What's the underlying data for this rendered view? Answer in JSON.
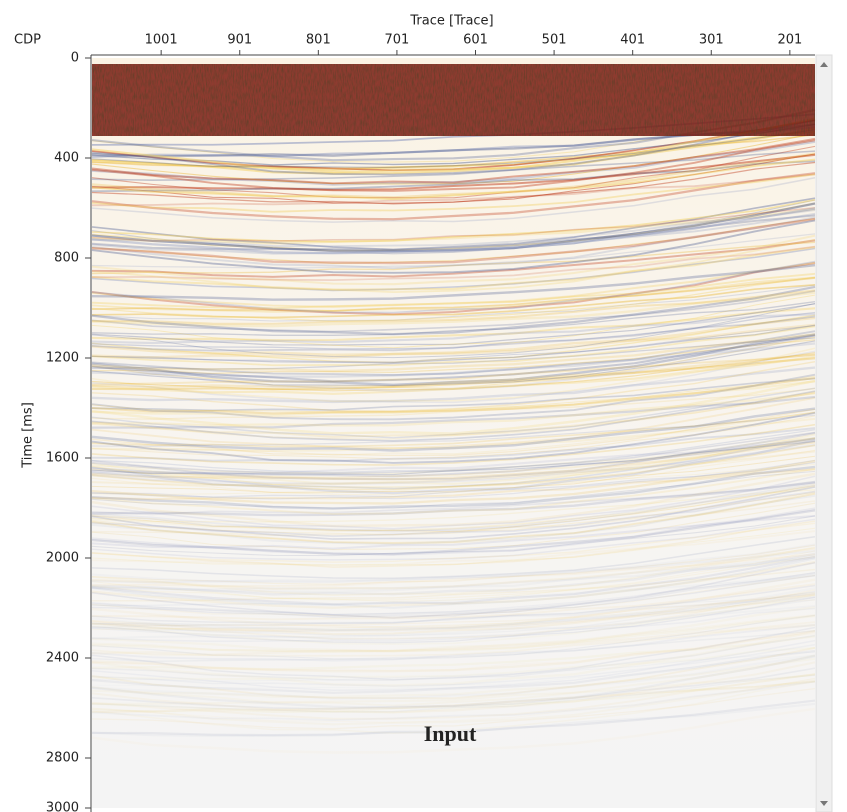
{
  "chart_data": {
    "type": "seismic",
    "title": "Trace [Trace]",
    "x_header": "CDP",
    "ylabel": "Time [ms]",
    "annotation": "Input",
    "xlim": [
      1089,
      169
    ],
    "xticks": [
      1001,
      901,
      801,
      701,
      601,
      501,
      401,
      301,
      201
    ],
    "ylim": [
      0,
      3000
    ],
    "yticks": [
      0,
      400,
      800,
      1200,
      1600,
      2000,
      2400,
      2800,
      3000
    ]
  }
}
